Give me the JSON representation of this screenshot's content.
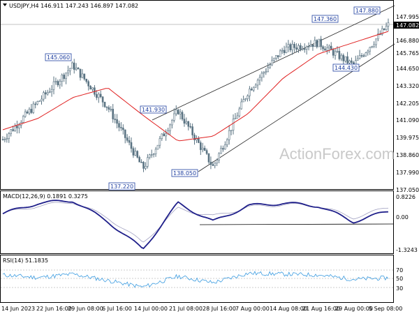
{
  "header": {
    "symbol_line": "USDJPY,H4  146.911 147.243 146.897 147.082",
    "macd_title": "MACD(12,26,9) 0.1891 0.3275",
    "rsi_title": "RSI(14) 51.1835",
    "watermark": "ActionForex.com"
  },
  "price_axis": {
    "labels": [
      "147.995",
      "146.880",
      "145.765",
      "144.650",
      "143.320",
      "142.205",
      "141.090",
      "139.975",
      "138.860",
      "137.990",
      "137.050"
    ],
    "current": "147.082"
  },
  "macd_axis": {
    "labels": [
      "0.8226",
      "0.00",
      "-1.3243"
    ]
  },
  "rsi_axis": {
    "labels": [
      "70",
      "50",
      "30"
    ]
  },
  "time_axis": {
    "labels": [
      "14 Jun 2023",
      "22 Jun 16:00",
      "29 Jun 08:00",
      "6 Jul 16:00",
      "14 Jul 00:00",
      "21 Jul 08:00",
      "28 Jul 16:00",
      "7 Aug 00:00",
      "14 Aug 08:00",
      "21 Aug 16:00",
      "29 Aug 00:00",
      "5 Sep 08:00"
    ]
  },
  "annotations": [
    {
      "text": "145.060"
    },
    {
      "text": "141.930"
    },
    {
      "text": "137.220"
    },
    {
      "text": "138.050"
    },
    {
      "text": "147.360"
    },
    {
      "text": "147.880"
    },
    {
      "text": "144.430"
    }
  ],
  "colors": {
    "candle": "#5a7382",
    "ma": "#e02020",
    "macd": "#1f1f8a",
    "signal": "#a0a0c0",
    "rsi": "#3a9be0",
    "label_box": "#1f3fa0"
  },
  "chart_data": [
    {
      "type": "line",
      "name": "price",
      "x": [
        "14 Jun 2023",
        "22 Jun 16:00",
        "29 Jun 08:00",
        "6 Jul 16:00",
        "14 Jul 00:00",
        "21 Jul 08:00",
        "28 Jul 16:00",
        "7 Aug 00:00",
        "14 Aug 08:00",
        "21 Aug 16:00",
        "29 Aug 00:00",
        "5 Sep 08:00"
      ],
      "series": [
        {
          "values": [
            140.0,
            142.3,
            144.6,
            142.0,
            138.2,
            141.8,
            138.3,
            143.0,
            145.6,
            146.0,
            144.6,
            147.1
          ]
        },
        {
          "values": [
            140.6,
            141.3,
            142.6,
            143.2,
            141.5,
            139.9,
            140.2,
            141.6,
            143.8,
            145.3,
            146.0,
            146.7
          ]
        }
      ],
      "ylim": [
        137.05,
        148.3
      ]
    },
    {
      "type": "line",
      "name": "MACD",
      "x": [
        "14 Jun 2023",
        "22 Jun 16:00",
        "29 Jun 08:00",
        "6 Jul 16:00",
        "14 Jul 00:00",
        "21 Jul 08:00",
        "28 Jul 16:00",
        "7 Aug 00:00",
        "14 Aug 08:00",
        "21 Aug 16:00",
        "29 Aug 00:00",
        "5 Sep 08:00"
      ],
      "series": [
        {
          "values": [
            0.1,
            0.5,
            0.6,
            -0.2,
            -1.25,
            0.5,
            -0.2,
            0.4,
            0.5,
            0.4,
            -0.2,
            0.19
          ]
        },
        {
          "values": [
            0.1,
            0.4,
            0.55,
            -0.05,
            -1.0,
            0.3,
            0.0,
            0.35,
            0.45,
            0.4,
            -0.05,
            0.33
          ]
        }
      ],
      "ylim": [
        -1.3243,
        0.8226
      ]
    },
    {
      "type": "line",
      "name": "RSI",
      "x": [
        "14 Jun 2023",
        "22 Jun 16:00",
        "29 Jun 08:00",
        "6 Jul 16:00",
        "14 Jul 00:00",
        "21 Jul 08:00",
        "28 Jul 16:00",
        "7 Aug 00:00",
        "14 Aug 08:00",
        "21 Aug 16:00",
        "29 Aug 00:00",
        "5 Sep 08:00"
      ],
      "series": [
        {
          "values": [
            58,
            52,
            60,
            45,
            30,
            55,
            40,
            62,
            60,
            58,
            48,
            51.18
          ]
        }
      ],
      "ylim": [
        0,
        100
      ]
    }
  ]
}
